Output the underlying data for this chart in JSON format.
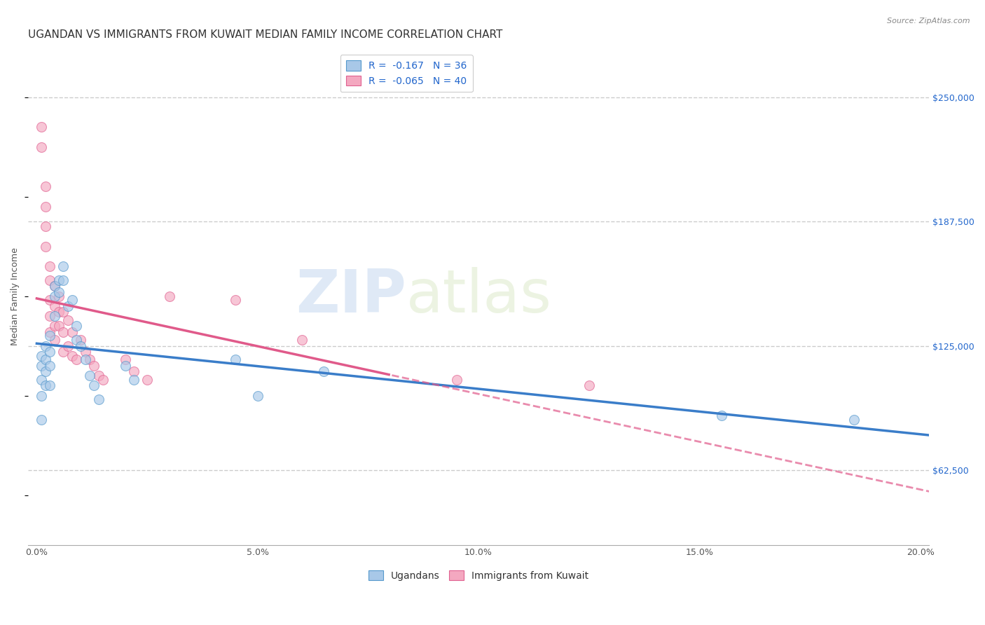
{
  "title": "UGANDAN VS IMMIGRANTS FROM KUWAIT MEDIAN FAMILY INCOME CORRELATION CHART",
  "source": "Source: ZipAtlas.com",
  "ylabel": "Median Family Income",
  "xlabel_ticks": [
    "0.0%",
    "5.0%",
    "10.0%",
    "15.0%",
    "20.0%"
  ],
  "xlabel_vals": [
    0.0,
    0.05,
    0.1,
    0.15,
    0.2
  ],
  "ytick_labels": [
    "$62,500",
    "$125,000",
    "$187,500",
    "$250,000"
  ],
  "ytick_vals": [
    62500,
    125000,
    187500,
    250000
  ],
  "ylim": [
    25000,
    275000
  ],
  "xlim": [
    -0.002,
    0.202
  ],
  "legend_labels": [
    "Ugandans",
    "Immigrants from Kuwait"
  ],
  "legend_R": [
    "R =  -0.167   N = 36",
    "R =  -0.065   N = 40"
  ],
  "ugandan_color": "#a8c8e8",
  "kuwait_color": "#f4a8c0",
  "ugandan_edge_color": "#5599cc",
  "kuwait_edge_color": "#e06090",
  "ugandan_line_color": "#3a7dc9",
  "kuwait_line_color": "#e05a8a",
  "background_color": "#ffffff",
  "grid_color": "#cccccc",
  "watermark_zip": "ZIP",
  "watermark_atlas": "atlas",
  "ugandan_x": [
    0.001,
    0.001,
    0.001,
    0.001,
    0.001,
    0.002,
    0.002,
    0.002,
    0.002,
    0.003,
    0.003,
    0.003,
    0.003,
    0.004,
    0.004,
    0.004,
    0.005,
    0.005,
    0.006,
    0.006,
    0.007,
    0.008,
    0.009,
    0.009,
    0.01,
    0.011,
    0.012,
    0.013,
    0.014,
    0.02,
    0.022,
    0.045,
    0.05,
    0.065,
    0.155,
    0.185
  ],
  "ugandan_y": [
    120000,
    115000,
    108000,
    100000,
    88000,
    125000,
    118000,
    112000,
    105000,
    130000,
    122000,
    115000,
    105000,
    155000,
    150000,
    140000,
    158000,
    152000,
    165000,
    158000,
    145000,
    148000,
    135000,
    128000,
    125000,
    118000,
    110000,
    105000,
    98000,
    115000,
    108000,
    118000,
    100000,
    112000,
    90000,
    88000
  ],
  "kuwait_x": [
    0.001,
    0.001,
    0.002,
    0.002,
    0.002,
    0.002,
    0.003,
    0.003,
    0.003,
    0.003,
    0.003,
    0.004,
    0.004,
    0.004,
    0.004,
    0.005,
    0.005,
    0.005,
    0.006,
    0.006,
    0.006,
    0.007,
    0.007,
    0.008,
    0.008,
    0.009,
    0.01,
    0.011,
    0.012,
    0.013,
    0.014,
    0.015,
    0.02,
    0.022,
    0.025,
    0.03,
    0.045,
    0.06,
    0.095,
    0.125
  ],
  "kuwait_y": [
    235000,
    225000,
    205000,
    195000,
    185000,
    175000,
    165000,
    158000,
    148000,
    140000,
    132000,
    155000,
    145000,
    135000,
    128000,
    150000,
    142000,
    135000,
    142000,
    132000,
    122000,
    138000,
    125000,
    132000,
    120000,
    118000,
    128000,
    122000,
    118000,
    115000,
    110000,
    108000,
    118000,
    112000,
    108000,
    150000,
    148000,
    128000,
    108000,
    105000
  ],
  "marker_size": 100,
  "marker_alpha": 0.65,
  "title_fontsize": 11,
  "axis_fontsize": 9,
  "tick_fontsize": 9,
  "legend_fontsize": 10
}
